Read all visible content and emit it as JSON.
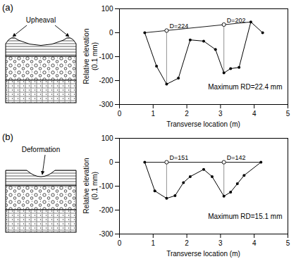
{
  "chart_data": [
    {
      "type": "line",
      "panel": "(a)",
      "sketch_label": "Upheaval",
      "xlabel": "Transverse location (m)",
      "ylabel": "Relative elevation (0.1 mm)",
      "x": [
        0.75,
        1.1,
        1.4,
        1.75,
        2.1,
        2.5,
        2.85,
        3.1,
        3.3,
        3.55,
        3.9,
        4.25
      ],
      "values": [
        0,
        -140,
        -215,
        -190,
        -30,
        -35,
        -70,
        -168,
        -150,
        -145,
        45,
        0
      ],
      "color": "#000000",
      "marker": "circle",
      "reference": {
        "x": [
          0.75,
          3.9
        ],
        "values": [
          0,
          45
        ],
        "line_style": "solid"
      },
      "measures": [
        {
          "x": 1.4,
          "bottom": -215,
          "top": 9,
          "label": "D=224"
        },
        {
          "x": 3.1,
          "bottom": -168,
          "top": 34,
          "label": "D=202"
        }
      ],
      "note": "Maximum RD=22.4 mm",
      "xlim": [
        0,
        5
      ],
      "xticks": [
        0,
        1,
        2,
        3,
        4,
        5
      ],
      "ylim": [
        -300,
        100
      ],
      "yticks": [
        -300,
        -200,
        -100,
        0,
        100
      ]
    },
    {
      "type": "line",
      "panel": "(b)",
      "sketch_label": "Deformation",
      "xlabel": "Transverse location (m)",
      "ylabel": "Relative elevation (0.1 mm)",
      "x": [
        0.75,
        1.05,
        1.4,
        1.65,
        1.9,
        2.1,
        2.5,
        2.75,
        3.1,
        3.3,
        3.5,
        3.7,
        4.2
      ],
      "values": [
        0,
        -120,
        -151,
        -140,
        -85,
        -60,
        -30,
        -60,
        -142,
        -125,
        -90,
        -55,
        0
      ],
      "color": "#000000",
      "marker": "circle",
      "reference": {
        "x": [
          0.75,
          4.2
        ],
        "values": [
          0,
          0
        ],
        "line_style": "solid"
      },
      "measures": [
        {
          "x": 1.4,
          "bottom": -151,
          "top": 0,
          "label": "D=151"
        },
        {
          "x": 3.1,
          "bottom": -142,
          "top": 0,
          "label": "D=142"
        }
      ],
      "note": "Maximum RD=15.1 mm",
      "xlim": [
        0,
        5
      ],
      "xticks": [
        0,
        1,
        2,
        3,
        4,
        5
      ],
      "ylim": [
        -300,
        100
      ],
      "yticks": [
        -300,
        -200,
        -100,
        0,
        100
      ]
    }
  ]
}
